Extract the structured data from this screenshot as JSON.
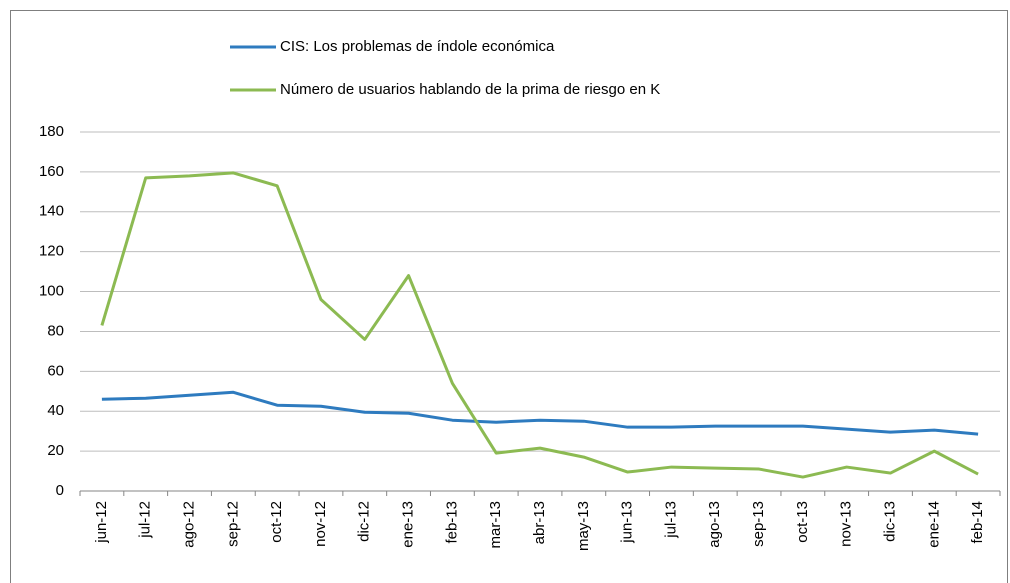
{
  "chart_data": {
    "type": "line",
    "categories": [
      "jun-12",
      "jul-12",
      "ago-12",
      "sep-12",
      "oct-12",
      "nov-12",
      "dic-12",
      "ene-13",
      "feb-13",
      "mar-13",
      "abr-13",
      "may-13",
      "jun-13",
      "jul-13",
      "ago-13",
      "sep-13",
      "oct-13",
      "nov-13",
      "dic-13",
      "ene-14",
      "feb-14"
    ],
    "series": [
      {
        "name": "CIS: Los problemas de índole económica",
        "color": "#2e7bbf",
        "values": [
          46,
          46.5,
          48,
          49.5,
          43,
          42.5,
          39.5,
          39,
          35.5,
          34.5,
          35.5,
          35,
          32,
          32,
          32.5,
          32.5,
          32.5,
          31,
          29.5,
          30.5,
          28.5
        ]
      },
      {
        "name": "Número de usuarios hablando de la prima de riesgo en K",
        "color": "#8cba52",
        "values": [
          83,
          157,
          158,
          159.5,
          153,
          96,
          76,
          108,
          54,
          19,
          21.5,
          17,
          9.5,
          12,
          11.5,
          11,
          7,
          12,
          9,
          20,
          8.5
        ]
      }
    ],
    "ylim": [
      0,
      180
    ],
    "yticks": [
      0,
      20,
      40,
      60,
      80,
      100,
      120,
      140,
      160,
      180
    ],
    "grid": true,
    "legend": "top"
  }
}
